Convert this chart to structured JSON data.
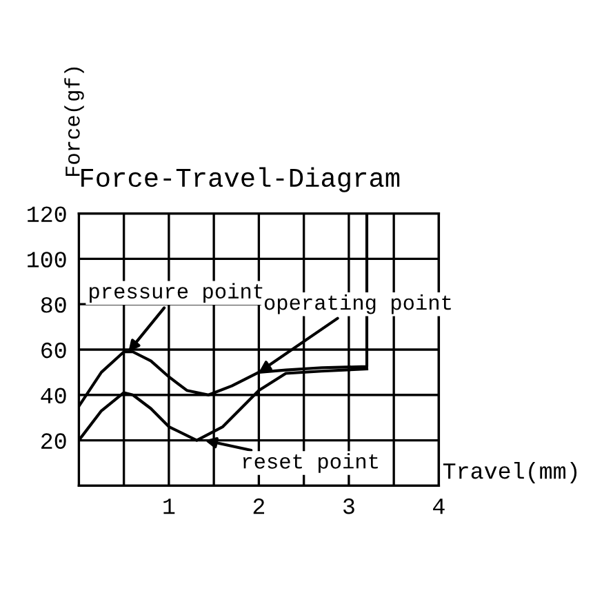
{
  "chart_data": {
    "type": "line",
    "title": "Force-Travel-Diagram",
    "xlabel": "Travel(mm)",
    "ylabel": "Force(gf)",
    "series": [
      {
        "color": "#000000",
        "x": [
          0,
          0.25,
          0.5,
          0.6,
          0.8,
          1.0,
          1.2,
          1.44,
          1.7,
          2.0,
          2.3,
          2.7,
          3.2,
          3.2
        ],
        "values": [
          35,
          50,
          59,
          59,
          55,
          48,
          42,
          40,
          44,
          50,
          51,
          52,
          52.5,
          120
        ]
      },
      {
        "color": "#000000",
        "x": [
          0,
          0.25,
          0.5,
          0.6,
          0.8,
          1.0,
          1.31,
          1.6,
          2.0,
          2.3,
          2.7,
          3.2
        ],
        "values": [
          20,
          33,
          41,
          40,
          34,
          26,
          20,
          26,
          42,
          49.5,
          50.5,
          51.5
        ]
      }
    ],
    "annotations": [
      {
        "text": "pressure point",
        "x": 0.55,
        "y": 59
      },
      {
        "text": "operating point",
        "x": 2.0,
        "y": 50
      },
      {
        "text": "reset point",
        "x": 1.4,
        "y": 20
      }
    ],
    "xlim": [
      0,
      4
    ],
    "ylim": [
      0,
      120
    ],
    "xticks": [
      {
        "value": 0,
        "label": null
      },
      {
        "value": 0.5,
        "label": null
      },
      1,
      {
        "value": 1.5,
        "label": null
      },
      2,
      {
        "value": 2.5,
        "label": null
      },
      3,
      {
        "value": 3.5,
        "label": null
      },
      4
    ],
    "yticks": [
      {
        "value": 0,
        "label": null
      },
      20,
      40,
      60,
      80,
      100,
      120
    ],
    "grid": true,
    "line_style": "solid",
    "marker": "none"
  }
}
